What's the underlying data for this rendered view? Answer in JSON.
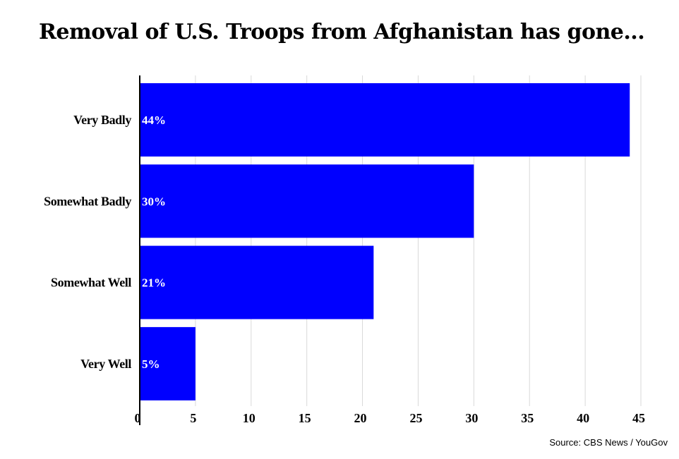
{
  "chart_data": {
    "type": "bar",
    "orientation": "horizontal",
    "title": "Removal of U.S. Troops from Afghanistan has gone...",
    "categories": [
      "Very Badly",
      "Somewhat Badly",
      "Somewhat Well",
      "Very Well"
    ],
    "values": [
      44,
      30,
      21,
      5
    ],
    "value_labels": [
      "44%",
      "30%",
      "21%",
      "5%"
    ],
    "xlim": [
      0,
      45
    ],
    "xticks": [
      0,
      5,
      10,
      15,
      20,
      25,
      30,
      35,
      40,
      45
    ],
    "grid": "vertical",
    "bar_color": "#0000ff",
    "source": "Source: CBS News / YouGov"
  }
}
